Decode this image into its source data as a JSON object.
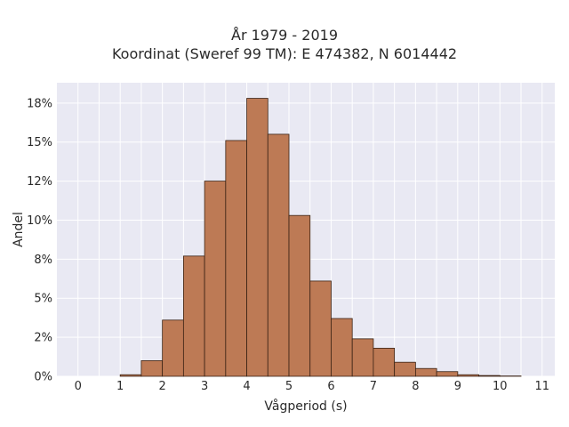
{
  "chart_data": {
    "type": "bar",
    "title_line1": "År 1979 - 2019",
    "title_line2": "Koordinat (Sweref 99 TM): E 474382, N 6014442",
    "xlabel": "Vågperiod (s)",
    "ylabel": "Andel",
    "xlim": [
      -0.5,
      11.3
    ],
    "ylim": [
      0,
      18.8
    ],
    "x_ticks": [
      "0",
      "1",
      "2",
      "3",
      "4",
      "5",
      "6",
      "7",
      "8",
      "9",
      "10",
      "11"
    ],
    "y_ticks": [
      "0%",
      "2%",
      "5%",
      "8%",
      "10%",
      "12%",
      "15%",
      "18%"
    ],
    "y_tick_values": [
      0,
      2.5,
      5,
      7.5,
      10,
      12.5,
      15,
      17.5
    ],
    "grid": true,
    "bin_width": 0.5,
    "bins": [
      {
        "x0": 1.0,
        "value": 0.1
      },
      {
        "x0": 1.5,
        "value": 1.0
      },
      {
        "x0": 2.0,
        "value": 3.6
      },
      {
        "x0": 2.5,
        "value": 7.7
      },
      {
        "x0": 3.0,
        "value": 12.5
      },
      {
        "x0": 3.5,
        "value": 15.1
      },
      {
        "x0": 4.0,
        "value": 17.8
      },
      {
        "x0": 4.5,
        "value": 15.5
      },
      {
        "x0": 5.0,
        "value": 10.3
      },
      {
        "x0": 5.5,
        "value": 6.1
      },
      {
        "x0": 6.0,
        "value": 3.7
      },
      {
        "x0": 6.5,
        "value": 2.4
      },
      {
        "x0": 7.0,
        "value": 1.8
      },
      {
        "x0": 7.5,
        "value": 0.9
      },
      {
        "x0": 8.0,
        "value": 0.5
      },
      {
        "x0": 8.5,
        "value": 0.3
      },
      {
        "x0": 9.0,
        "value": 0.1
      },
      {
        "x0": 9.5,
        "value": 0.05
      },
      {
        "x0": 10.0,
        "value": 0.02
      }
    ],
    "bar_color": "#bd7a55",
    "bar_edge_color": "#3a2214",
    "plot_bg": "#e9e9f3",
    "grid_color": "#ffffff"
  }
}
